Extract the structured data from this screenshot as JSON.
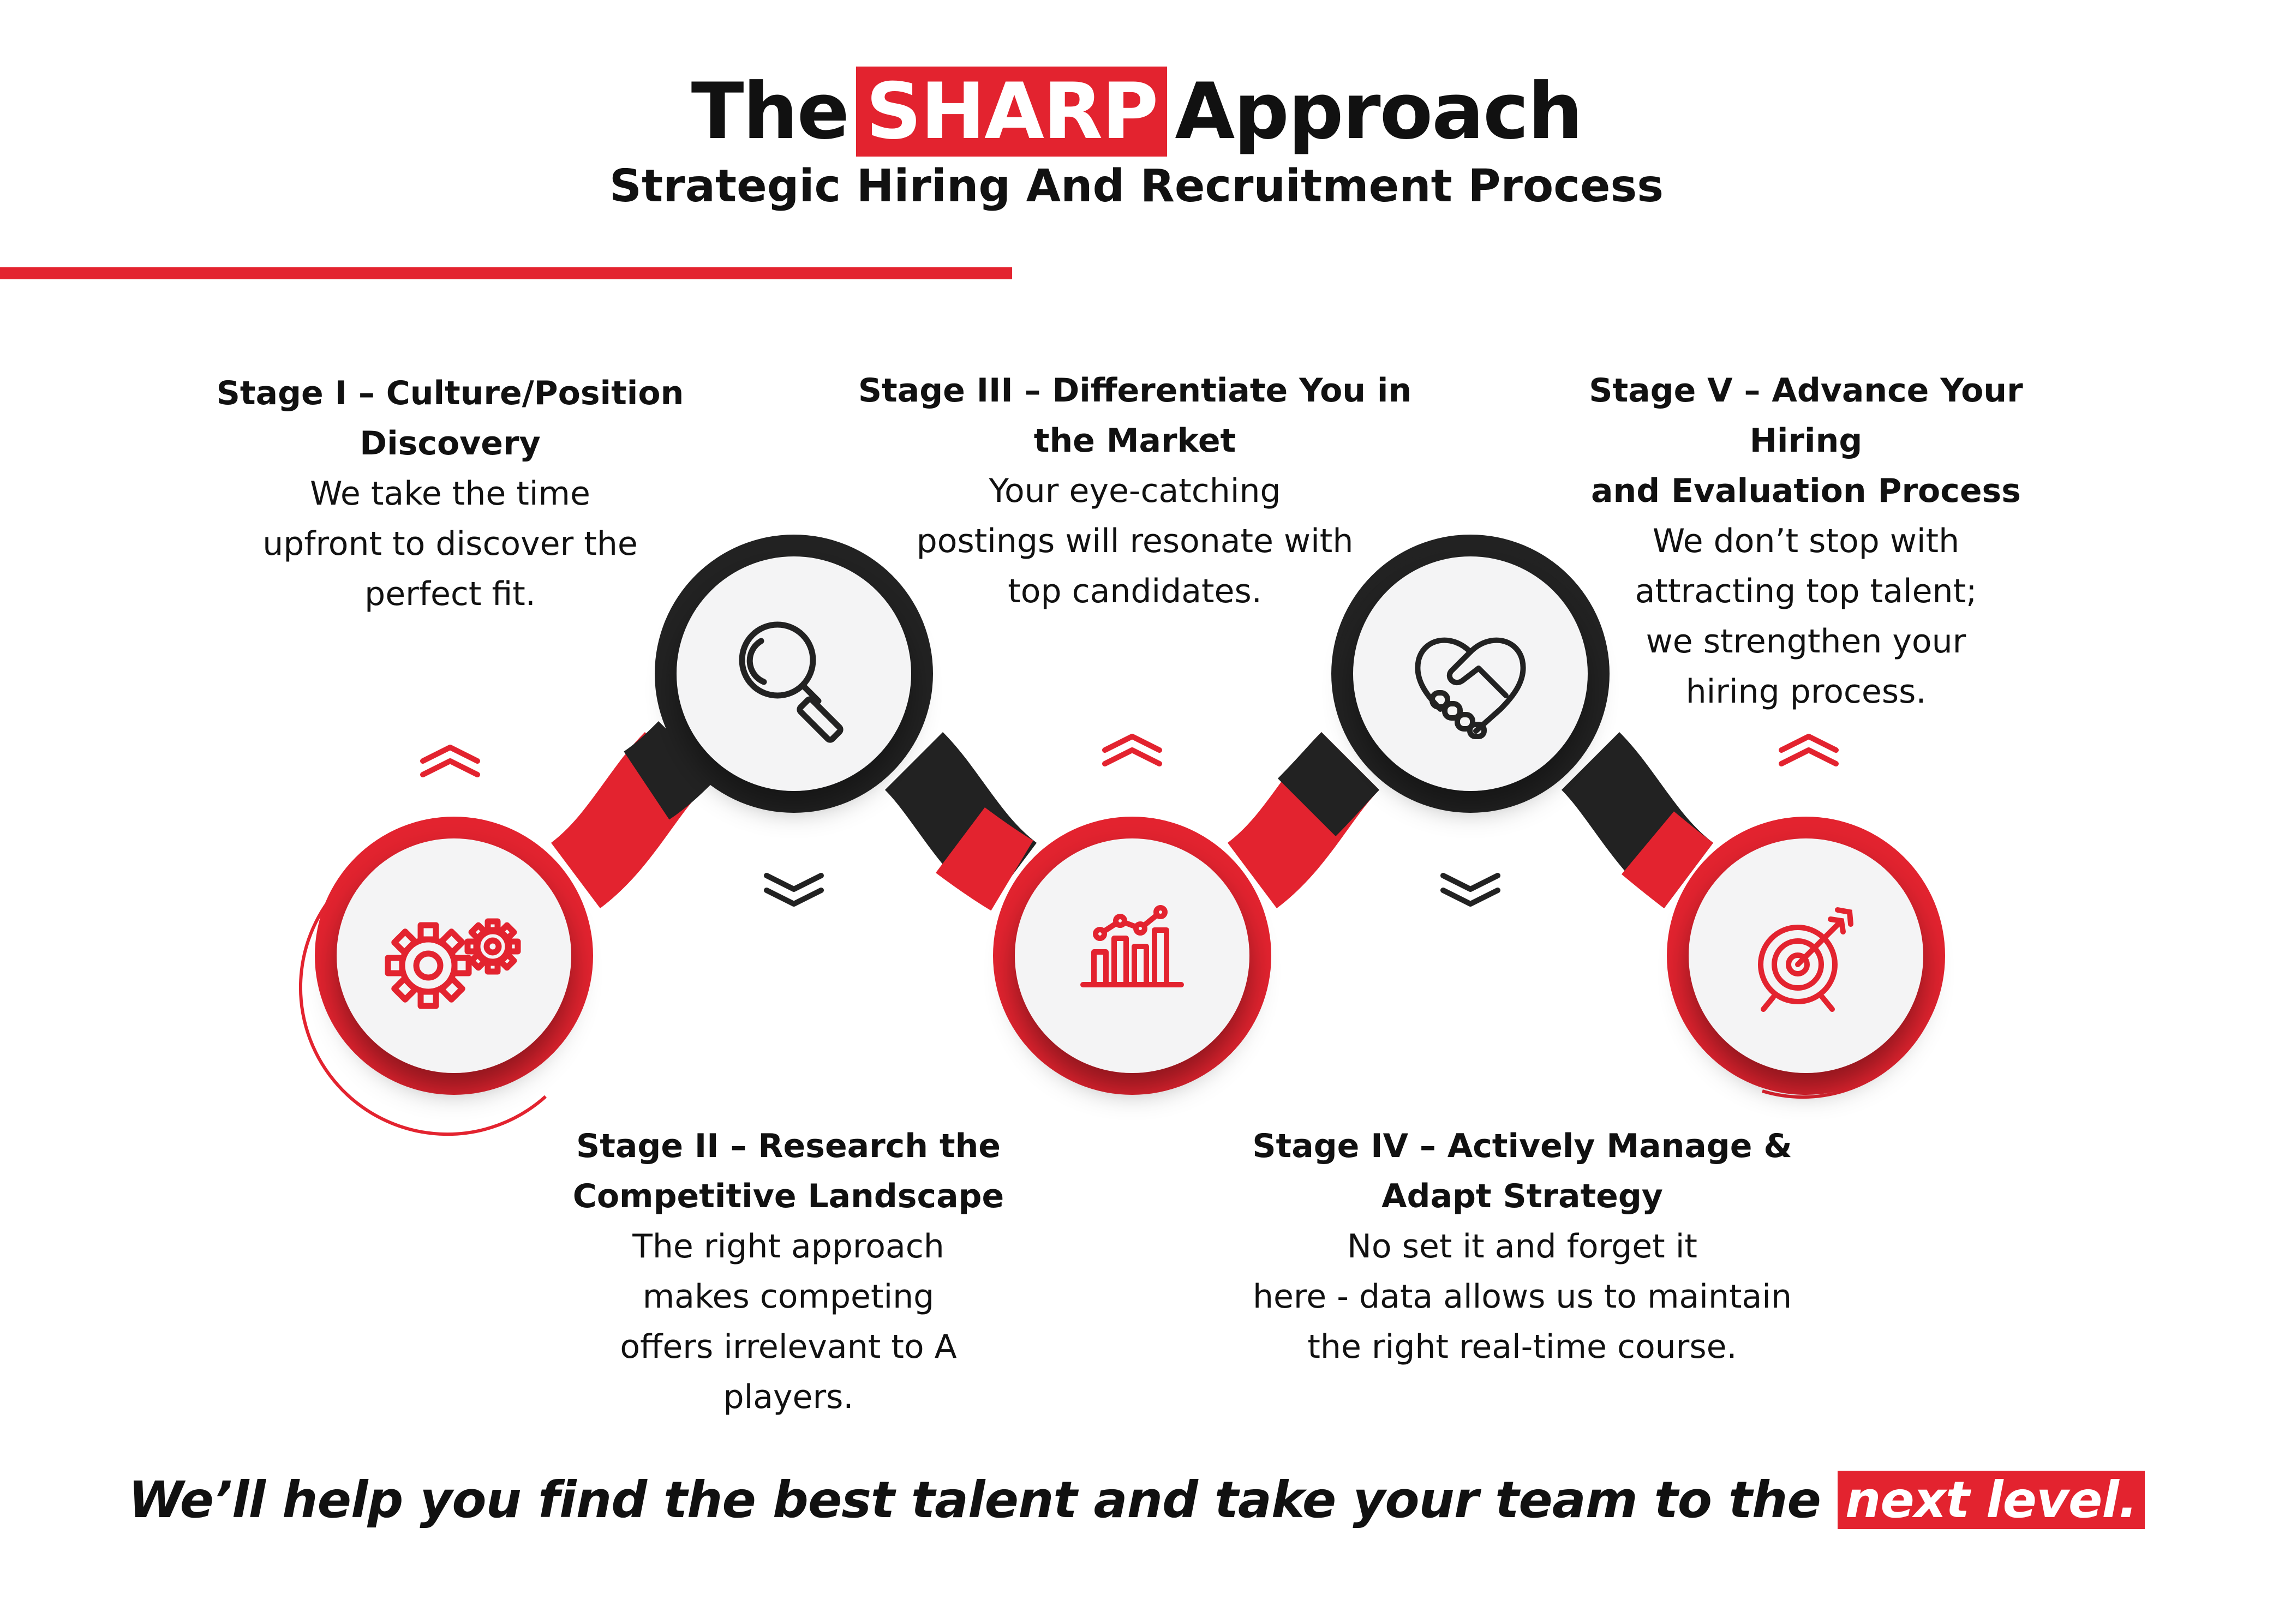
{
  "header": {
    "title_prefix": "The",
    "title_highlight": "SHARP",
    "title_suffix": "Approach",
    "subtitle": "Strategic Hiring And Recruitment Process"
  },
  "colors": {
    "accent": "#e3232f",
    "dark": "#222222",
    "circle_fill": "#f4f4f5"
  },
  "stages": [
    {
      "title_lines": [
        "Stage I – Culture/Position",
        "Discovery"
      ],
      "desc_lines": [
        "We take the time",
        "upfront to discover the",
        "perfect fit."
      ],
      "icon": "gears-icon",
      "marker": "up-chevrons"
    },
    {
      "title_lines": [
        "Stage II – Research the",
        "Competitive Landscape"
      ],
      "desc_lines": [
        "The right approach",
        "makes competing",
        "offers irrelevant to A players."
      ],
      "icon": "magnifier-icon",
      "marker": "down-chevrons"
    },
    {
      "title_lines": [
        "Stage III – Differentiate You in",
        "the Market"
      ],
      "desc_lines": [
        "Your eye-catching",
        "postings will resonate with",
        "top candidates."
      ],
      "icon": "bar-chart-icon",
      "marker": "up-chevrons"
    },
    {
      "title_lines": [
        "Stage IV – Actively Manage &",
        "Adapt Strategy"
      ],
      "desc_lines": [
        "No set it and forget it",
        "here - data allows us to maintain",
        "the right real-time course."
      ],
      "icon": "handshake-icon",
      "marker": "down-chevrons"
    },
    {
      "title_lines": [
        "Stage V – Advance Your Hiring",
        "and Evaluation Process"
      ],
      "desc_lines": [
        "We don’t stop with",
        "attracting top talent;",
        "we strengthen your",
        "hiring process."
      ],
      "icon": "target-icon",
      "marker": "up-chevrons"
    }
  ],
  "footer": {
    "tagline_main": "We’ll help you find the best talent and take your team to the",
    "tagline_highlight": "next level."
  }
}
